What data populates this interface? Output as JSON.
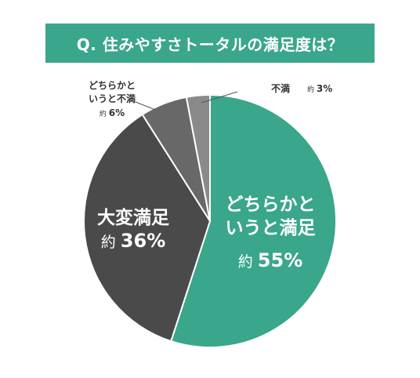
{
  "title": "Q. 住みやすさトータルの満足度は？",
  "colors": {
    "banner": "#3aa68b",
    "satisfied": "#3aa68b",
    "somewhat_satisfied": "#3aa68b",
    "very_satisfied": "#4a4a4a",
    "somewhat_dissatisfied": "#686868",
    "dissatisfied": "#8a8a8a"
  },
  "chart_data": {
    "type": "pie",
    "title": "Q. 住みやすさトータルの満足度は？",
    "slices": [
      {
        "label": "どちらかといと満足",
        "label_lines": [
          "どちらかと",
          "いうと満足"
        ],
        "prefix": "約",
        "value_text": "55%",
        "value": 55,
        "color": "#3aa68b"
      },
      {
        "label": "大変満足",
        "label_lines": [
          "大変満足"
        ],
        "prefix": "約",
        "value_text": "36%",
        "value": 36,
        "color": "#4a4a4a"
      },
      {
        "label": "どちらかといと不満",
        "label_lines": [
          "どちらかと",
          "いうと不満"
        ],
        "prefix": "約",
        "value_text": "6%",
        "value": 6,
        "color": "#686868"
      },
      {
        "label": "不満",
        "label_lines": [
          "不満"
        ],
        "prefix": "約",
        "value_text": "3%",
        "value": 3,
        "color": "#8a8a8a"
      }
    ]
  }
}
